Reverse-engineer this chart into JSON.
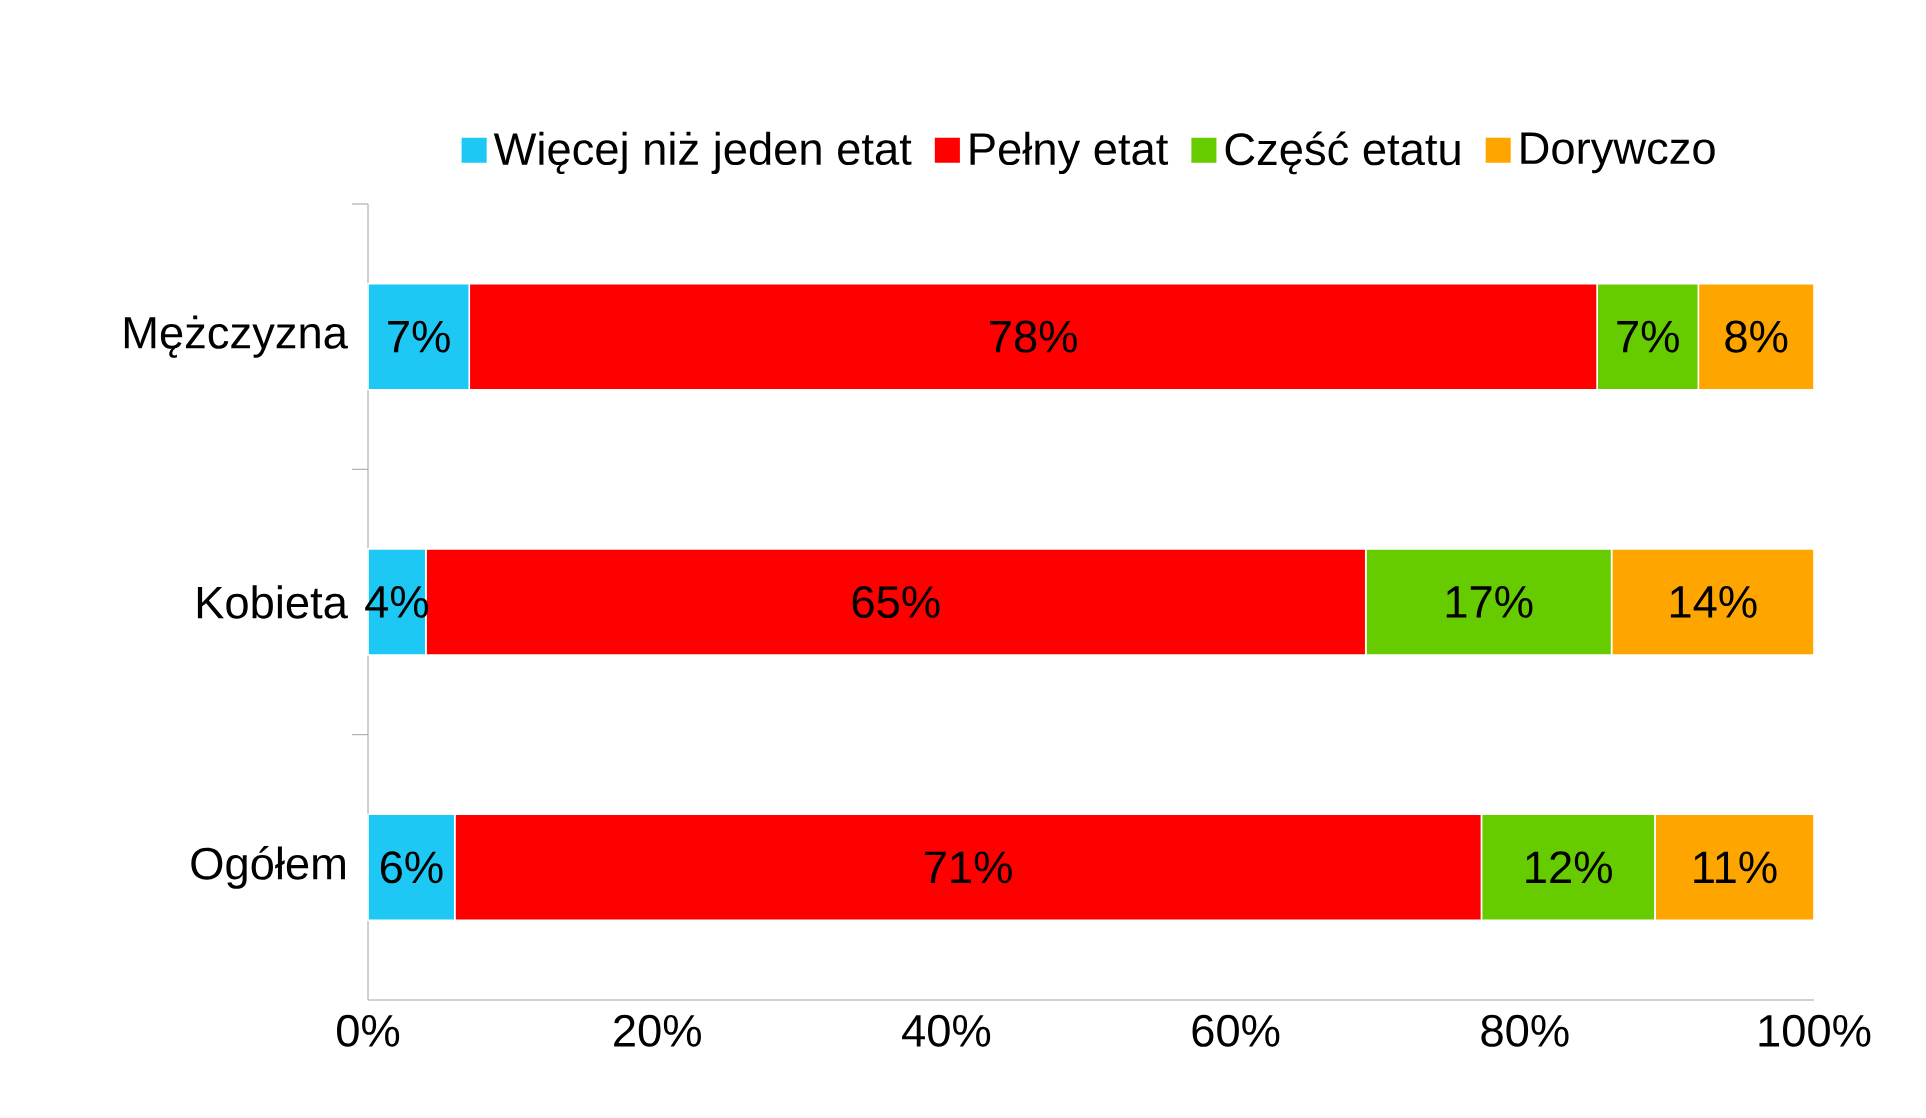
{
  "chart_data": {
    "type": "bar",
    "orientation": "horizontal",
    "stacked": true,
    "legend": "top",
    "categories": [
      "Mężczyzna",
      "Kobieta",
      "Ogółem"
    ],
    "series": [
      {
        "name": "Więcej niż jeden etat",
        "color": "#1ec8f5",
        "values": [
          7,
          4,
          6
        ],
        "value_labels": [
          "7%",
          "4%",
          "6%"
        ]
      },
      {
        "name": "Pełny etat",
        "color": "#ff0000",
        "values": [
          78,
          65,
          71
        ],
        "value_labels": [
          "78%",
          "65%",
          "71%"
        ]
      },
      {
        "name": "Część etatu",
        "color": "#66cc00",
        "values": [
          7,
          17,
          12
        ],
        "value_labels": [
          "7%",
          "17%",
          "12%"
        ]
      },
      {
        "name": "Dorywczo",
        "color": "#ffa500",
        "values": [
          8,
          14,
          11
        ],
        "value_labels": [
          "8%",
          "14%",
          "11%"
        ]
      }
    ],
    "xlim": [
      0,
      100
    ],
    "xticks": [
      {
        "value": 0,
        "label": "0%"
      },
      {
        "value": 20,
        "label": "20%"
      },
      {
        "value": 40,
        "label": "40%"
      },
      {
        "value": 60,
        "label": "60%"
      },
      {
        "value": 80,
        "label": "80%"
      },
      {
        "value": 100,
        "label": "100%"
      }
    ]
  }
}
